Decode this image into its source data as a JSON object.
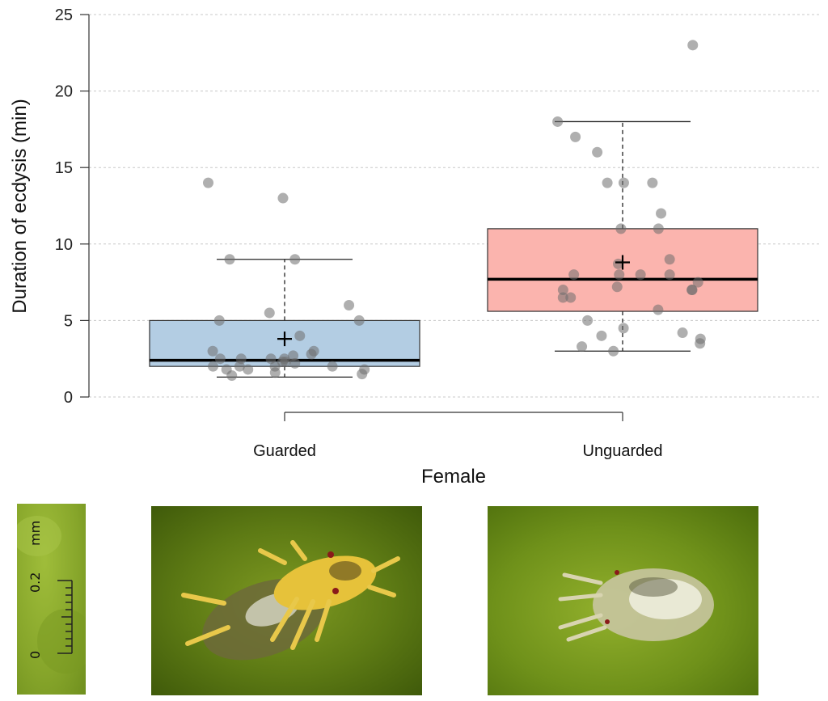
{
  "chart_data": {
    "type": "boxplot",
    "title": "",
    "xlabel": "Female",
    "ylabel": "Duration of ecdysis (min)",
    "ylim": [
      0,
      25
    ],
    "yticks": [
      0,
      5,
      10,
      15,
      20,
      25
    ],
    "grid": "horizontal dashed",
    "categories": [
      "Guarded",
      "Unguarded"
    ],
    "groups": [
      {
        "name": "Guarded",
        "color": "#b3cde3",
        "whisker_low": 1.3,
        "q1": 2.0,
        "median": 2.4,
        "q3": 5.0,
        "whisker_high": 9.0,
        "mean": 3.8,
        "points": [
          13,
          9,
          5,
          2.5,
          2,
          2.3,
          2,
          6,
          4,
          5.5,
          1.8,
          2,
          2.8,
          3,
          2.5,
          2,
          3,
          1.8,
          2.2,
          2.3,
          9,
          14,
          5,
          1.8,
          2.5,
          1.6,
          1.5,
          1.4,
          2.5,
          2.7
        ]
      },
      {
        "name": "Unguarded",
        "color": "#fbb4ae",
        "whisker_low": 3.0,
        "q1": 5.6,
        "median": 7.7,
        "q3": 11.0,
        "whisker_high": 18.0,
        "mean": 8.8,
        "points": [
          12,
          8.7,
          8,
          7,
          9,
          7.2,
          8,
          8,
          11,
          4.2,
          4,
          3.3,
          3,
          4.5,
          6.5,
          14,
          14,
          5.7,
          3.8,
          14,
          17,
          11,
          8,
          6.5,
          16,
          7.5,
          7,
          5,
          18,
          23,
          3.5,
          7
        ]
      }
    ],
    "bracket": "Guarded–Unguarded"
  },
  "scale_bar": {
    "unit": "mm",
    "label_top": "0.2",
    "label_bottom": "0"
  }
}
